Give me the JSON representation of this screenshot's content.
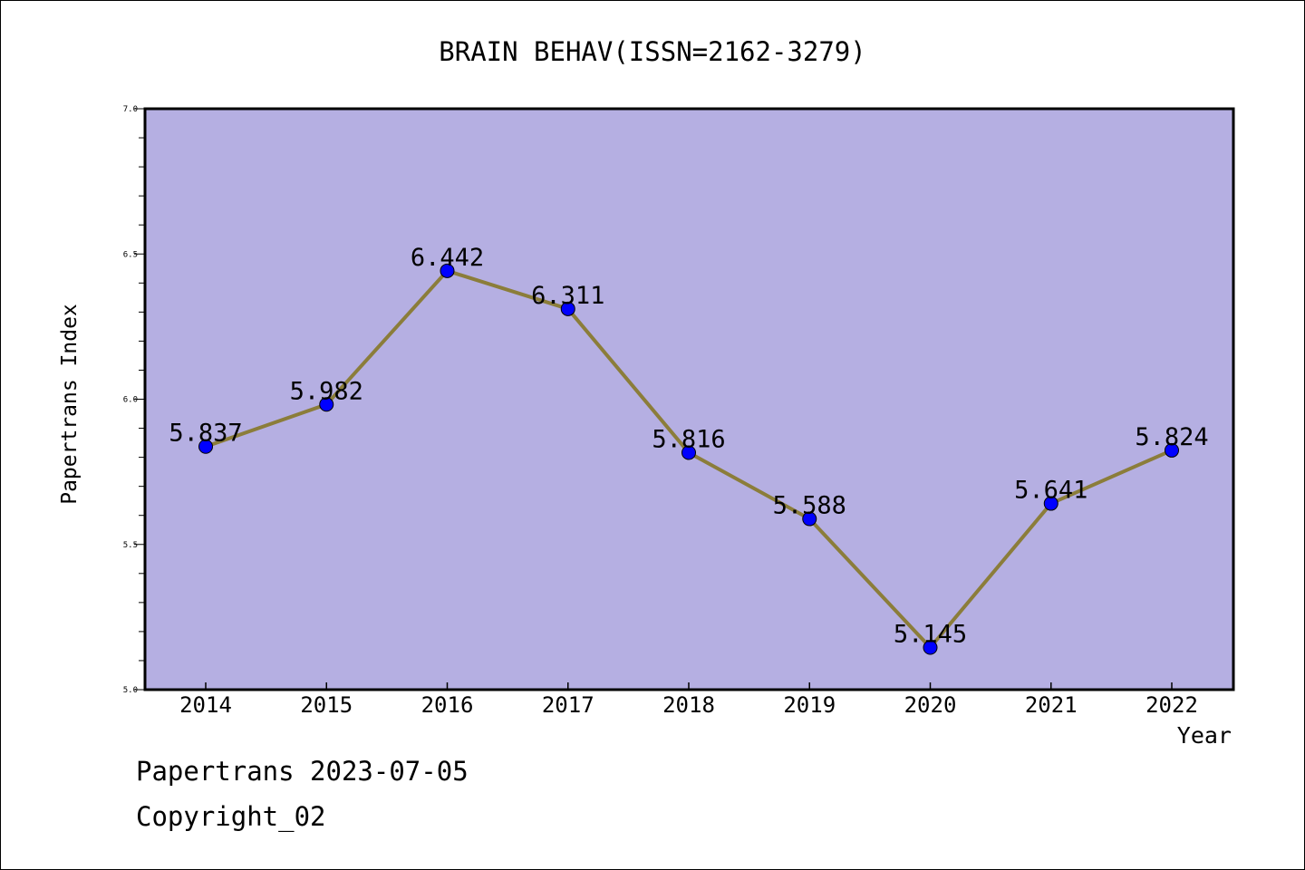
{
  "chart_data": {
    "type": "line",
    "title": "BRAIN BEHAV(ISSN=2162-3279)",
    "xlabel": "Year",
    "ylabel": "Papertrans Index",
    "categories": [
      "2014",
      "2015",
      "2016",
      "2017",
      "2018",
      "2019",
      "2020",
      "2021",
      "2022"
    ],
    "series": [
      {
        "values": [
          5.837,
          5.982,
          6.442,
          6.311,
          5.816,
          5.588,
          5.145,
          5.641,
          5.824
        ],
        "data_labels": [
          "5.837",
          "5.982",
          "6.442",
          "6.311",
          "5.816",
          "5.588",
          "5.145",
          "5.641",
          "5.824"
        ],
        "line_color": "#8b7d3a",
        "marker_color": "#0000ff"
      }
    ],
    "ylim": [
      5.0,
      7.0
    ],
    "yticks": [
      5.0,
      5.5,
      6.0,
      6.5,
      7.0
    ],
    "ytick_labels": [
      "5.0",
      "5.5",
      "6.0",
      "6.5",
      "7.0"
    ],
    "plot_background": "#b5afe2",
    "grid": false
  },
  "footer": {
    "line1": "Papertrans 2023-07-05",
    "line2": "Copyright_02"
  }
}
